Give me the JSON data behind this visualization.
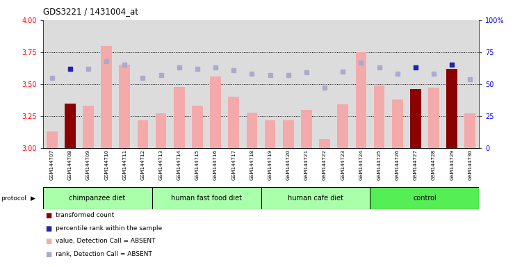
{
  "title": "GDS3221 / 1431004_at",
  "samples": [
    "GSM144707",
    "GSM144708",
    "GSM144709",
    "GSM144710",
    "GSM144711",
    "GSM144712",
    "GSM144713",
    "GSM144714",
    "GSM144715",
    "GSM144716",
    "GSM144717",
    "GSM144718",
    "GSM144719",
    "GSM144720",
    "GSM144721",
    "GSM144722",
    "GSM144723",
    "GSM144724",
    "GSM144725",
    "GSM144726",
    "GSM144727",
    "GSM144728",
    "GSM144729",
    "GSM144730"
  ],
  "bar_values": [
    3.13,
    3.35,
    3.33,
    3.8,
    3.65,
    3.22,
    3.27,
    3.48,
    3.33,
    3.56,
    3.4,
    3.28,
    3.22,
    3.22,
    3.3,
    3.07,
    3.34,
    3.75,
    3.49,
    3.38,
    3.46,
    3.47,
    3.62,
    3.27
  ],
  "bar_colors": [
    "#f4aaaa",
    "#8b0000",
    "#f4aaaa",
    "#f4aaaa",
    "#f4aaaa",
    "#f4aaaa",
    "#f4aaaa",
    "#f4aaaa",
    "#f4aaaa",
    "#f4aaaa",
    "#f4aaaa",
    "#f4aaaa",
    "#f4aaaa",
    "#f4aaaa",
    "#f4aaaa",
    "#f4aaaa",
    "#f4aaaa",
    "#f4aaaa",
    "#f4aaaa",
    "#f4aaaa",
    "#8b0000",
    "#f4aaaa",
    "#8b0000",
    "#f4aaaa"
  ],
  "rank_values": [
    55,
    62,
    62,
    68,
    65,
    55,
    57,
    63,
    62,
    63,
    61,
    58,
    57,
    57,
    59,
    47,
    60,
    67,
    63,
    58,
    63,
    58,
    65,
    54
  ],
  "rank_colors": [
    "#aaaacc",
    "#2222aa",
    "#aaaacc",
    "#aaaacc",
    "#aaaacc",
    "#aaaacc",
    "#aaaacc",
    "#aaaacc",
    "#aaaacc",
    "#aaaacc",
    "#aaaacc",
    "#aaaacc",
    "#aaaacc",
    "#aaaacc",
    "#aaaacc",
    "#aaaacc",
    "#aaaacc",
    "#aaaacc",
    "#aaaacc",
    "#aaaacc",
    "#2222aa",
    "#aaaacc",
    "#2222aa",
    "#aaaacc"
  ],
  "groups": [
    {
      "label": "chimpanzee diet",
      "start": 0,
      "end": 5,
      "color": "#aaffaa"
    },
    {
      "label": "human fast food diet",
      "start": 6,
      "end": 11,
      "color": "#aaffaa"
    },
    {
      "label": "human cafe diet",
      "start": 12,
      "end": 17,
      "color": "#aaffaa"
    },
    {
      "label": "control",
      "start": 18,
      "end": 23,
      "color": "#55ee55"
    }
  ],
  "ylim_left": [
    3.0,
    4.0
  ],
  "ylim_right": [
    0,
    100
  ],
  "yticks_left": [
    3.0,
    3.25,
    3.5,
    3.75,
    4.0
  ],
  "yticks_right": [
    0,
    25,
    50,
    75,
    100
  ],
  "dotted_lines": [
    3.25,
    3.5,
    3.75
  ],
  "bg_color": "#dcdcdc",
  "legend_items": [
    {
      "color": "#8b0000",
      "text": "transformed count"
    },
    {
      "color": "#2222aa",
      "text": "percentile rank within the sample"
    },
    {
      "color": "#f4aaaa",
      "text": "value, Detection Call = ABSENT"
    },
    {
      "color": "#aaaacc",
      "text": "rank, Detection Call = ABSENT"
    }
  ]
}
